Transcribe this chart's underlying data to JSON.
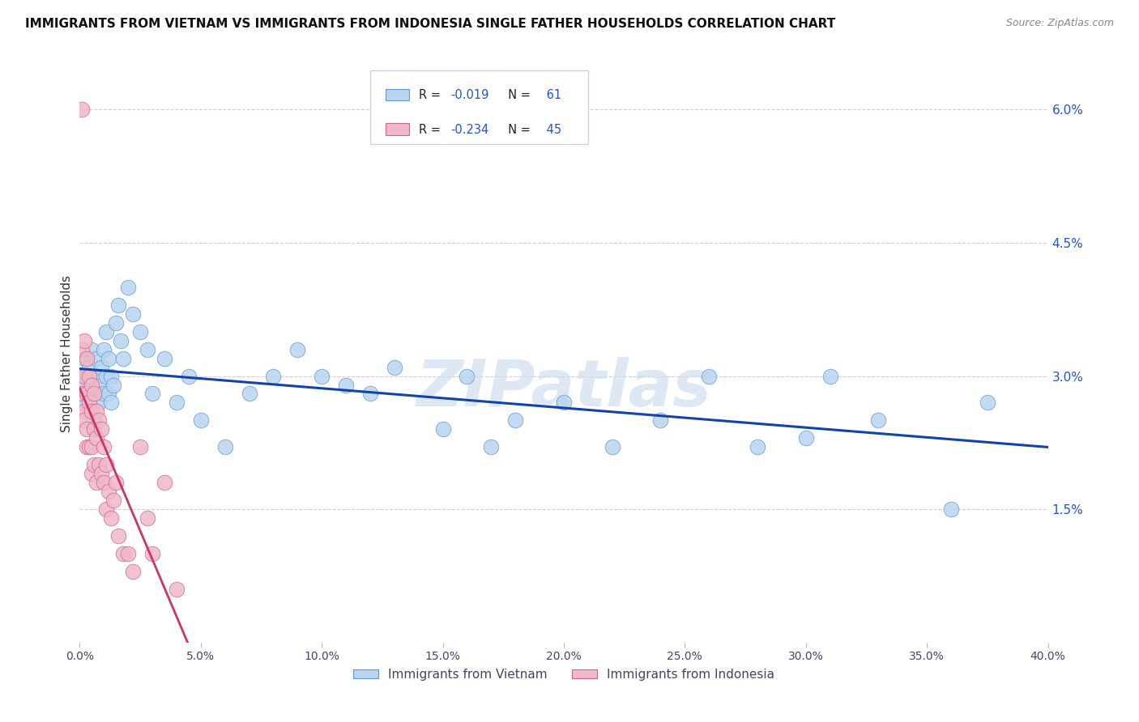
{
  "title": "IMMIGRANTS FROM VIETNAM VS IMMIGRANTS FROM INDONESIA SINGLE FATHER HOUSEHOLDS CORRELATION CHART",
  "source": "Source: ZipAtlas.com",
  "ylabel": "Single Father Households",
  "xlim": [
    0.0,
    0.4
  ],
  "ylim": [
    0.0,
    0.065
  ],
  "right_ytick_vals": [
    0.0,
    0.015,
    0.03,
    0.045,
    0.06
  ],
  "right_ytick_labels": [
    "",
    "1.5%",
    "3.0%",
    "4.5%",
    "6.0%"
  ],
  "xtick_vals": [
    0.0,
    0.05,
    0.1,
    0.15,
    0.2,
    0.25,
    0.3,
    0.35,
    0.4
  ],
  "xtick_labels": [
    "0.0%",
    "5.0%",
    "10.0%",
    "15.0%",
    "20.0%",
    "25.0%",
    "30.0%",
    "35.0%",
    "40.0%"
  ],
  "legend_line1_r": "R = -0.019",
  "legend_line1_n": "N=  61",
  "legend_line2_r": "R = -0.234",
  "legend_line2_n": "N=  45",
  "color_vietnam_fill": "#b8d4f0",
  "color_vietnam_edge": "#6699cc",
  "color_indonesia_fill": "#f0b8c8",
  "color_indonesia_edge": "#cc6688",
  "color_line_vietnam": "#1144aa",
  "color_line_indonesia": "#cc3366",
  "color_line_indonesia_dashed": "#e8b0c4",
  "color_grid": "#ccccdd",
  "watermark_text": "ZIPatlas",
  "watermark_color": "#d0ddf0",
  "title_color": "#111111",
  "source_color": "#888888",
  "label_color": "#444466",
  "n_label_color": "#2255cc",
  "scatter_vietnam_x": [
    0.001,
    0.002,
    0.002,
    0.003,
    0.003,
    0.004,
    0.004,
    0.005,
    0.005,
    0.006,
    0.006,
    0.007,
    0.007,
    0.008,
    0.008,
    0.009,
    0.009,
    0.01,
    0.01,
    0.011,
    0.011,
    0.012,
    0.012,
    0.013,
    0.013,
    0.014,
    0.015,
    0.016,
    0.017,
    0.018,
    0.02,
    0.022,
    0.025,
    0.028,
    0.03,
    0.035,
    0.04,
    0.045,
    0.05,
    0.06,
    0.07,
    0.08,
    0.09,
    0.1,
    0.11,
    0.12,
    0.13,
    0.15,
    0.16,
    0.17,
    0.18,
    0.2,
    0.22,
    0.24,
    0.26,
    0.28,
    0.3,
    0.31,
    0.33,
    0.36,
    0.375
  ],
  "scatter_vietnam_y": [
    0.027,
    0.029,
    0.032,
    0.03,
    0.028,
    0.031,
    0.026,
    0.033,
    0.028,
    0.03,
    0.025,
    0.032,
    0.028,
    0.03,
    0.027,
    0.029,
    0.031,
    0.028,
    0.033,
    0.03,
    0.035,
    0.028,
    0.032,
    0.03,
    0.027,
    0.029,
    0.036,
    0.038,
    0.034,
    0.032,
    0.04,
    0.037,
    0.035,
    0.033,
    0.028,
    0.032,
    0.027,
    0.03,
    0.025,
    0.022,
    0.028,
    0.03,
    0.033,
    0.03,
    0.029,
    0.028,
    0.031,
    0.024,
    0.03,
    0.022,
    0.025,
    0.027,
    0.022,
    0.025,
    0.03,
    0.022,
    0.023,
    0.03,
    0.025,
    0.015,
    0.027
  ],
  "scatter_indonesia_x": [
    0.001,
    0.001,
    0.001,
    0.002,
    0.002,
    0.002,
    0.002,
    0.003,
    0.003,
    0.003,
    0.003,
    0.004,
    0.004,
    0.004,
    0.005,
    0.005,
    0.005,
    0.005,
    0.006,
    0.006,
    0.006,
    0.007,
    0.007,
    0.007,
    0.008,
    0.008,
    0.009,
    0.009,
    0.01,
    0.01,
    0.011,
    0.011,
    0.012,
    0.013,
    0.014,
    0.015,
    0.016,
    0.018,
    0.02,
    0.022,
    0.025,
    0.028,
    0.03,
    0.035,
    0.04
  ],
  "scatter_indonesia_y": [
    0.06,
    0.033,
    0.028,
    0.034,
    0.03,
    0.026,
    0.025,
    0.032,
    0.028,
    0.024,
    0.022,
    0.03,
    0.027,
    0.022,
    0.029,
    0.026,
    0.022,
    0.019,
    0.028,
    0.024,
    0.02,
    0.026,
    0.023,
    0.018,
    0.025,
    0.02,
    0.024,
    0.019,
    0.022,
    0.018,
    0.02,
    0.015,
    0.017,
    0.014,
    0.016,
    0.018,
    0.012,
    0.01,
    0.01,
    0.008,
    0.022,
    0.014,
    0.01,
    0.018,
    0.006
  ]
}
